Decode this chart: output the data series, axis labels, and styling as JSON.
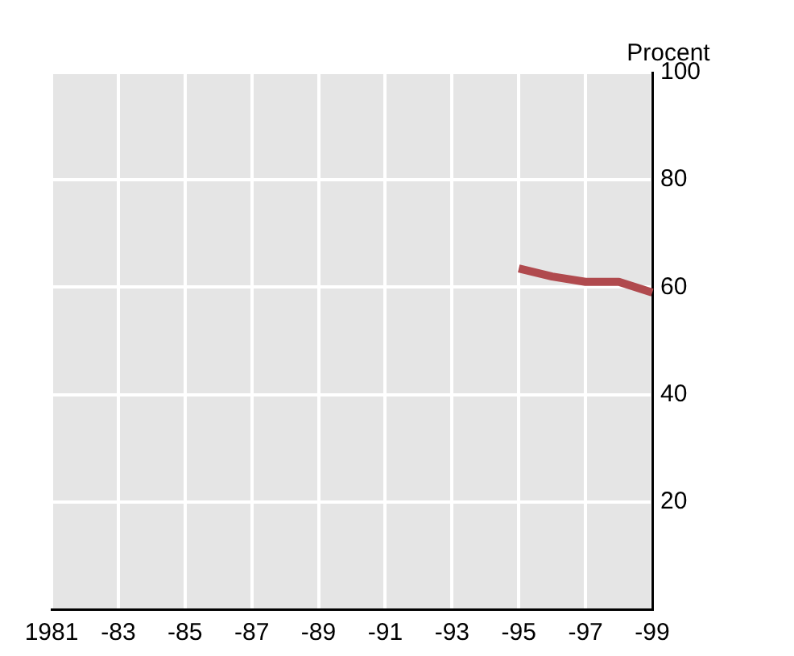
{
  "chart_data": {
    "type": "line",
    "ylabel": "Procent",
    "categories": [
      "1981",
      null,
      "-83",
      null,
      "-85",
      null,
      "-87",
      null,
      "-89",
      null,
      "-91",
      null,
      "-93",
      null,
      "-95",
      null,
      "-97",
      null,
      "-99"
    ],
    "series": [
      {
        "color": "#b04a4e",
        "values": [
          null,
          null,
          null,
          null,
          null,
          null,
          null,
          null,
          null,
          null,
          null,
          null,
          null,
          null,
          63.5,
          62,
          61,
          61,
          59
        ]
      }
    ],
    "ylim": [
      0,
      100
    ],
    "yticks": [
      20,
      40,
      60,
      80,
      100
    ],
    "grid": true,
    "legend": false,
    "marker": "none",
    "line_style": "solid"
  }
}
